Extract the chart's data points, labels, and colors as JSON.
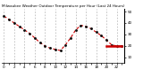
{
  "hours": [
    0,
    1,
    2,
    3,
    4,
    5,
    6,
    7,
    8,
    9,
    10,
    11,
    12,
    13,
    14,
    15,
    16,
    17,
    18,
    19,
    20,
    21,
    22,
    23
  ],
  "temps": [
    46,
    43,
    40,
    37,
    34,
    31,
    27,
    23,
    20,
    18,
    17,
    16,
    21,
    27,
    34,
    38,
    37,
    35,
    32,
    29,
    25,
    21,
    20,
    20
  ],
  "line_color": "#cc0000",
  "marker_color": "#111111",
  "bg_color": "#ffffff",
  "title": "Milwaukee Weather Outdoor Temperature per Hour (Last 24 Hours)",
  "ylim": [
    5,
    52
  ],
  "yticks": [
    10,
    20,
    30,
    40,
    50
  ],
  "xlim": [
    -0.5,
    23.5
  ],
  "xtick_labels": [
    "0",
    "",
    "2",
    "",
    "4",
    "",
    "6",
    "",
    "8",
    "",
    "10",
    "",
    "12",
    "",
    "14",
    "",
    "16",
    "",
    "18",
    "",
    "20",
    "",
    "22",
    ""
  ],
  "flat_line_start": 20,
  "flat_line_end": 23,
  "flat_line_val": 20,
  "vgrid_every": 2
}
